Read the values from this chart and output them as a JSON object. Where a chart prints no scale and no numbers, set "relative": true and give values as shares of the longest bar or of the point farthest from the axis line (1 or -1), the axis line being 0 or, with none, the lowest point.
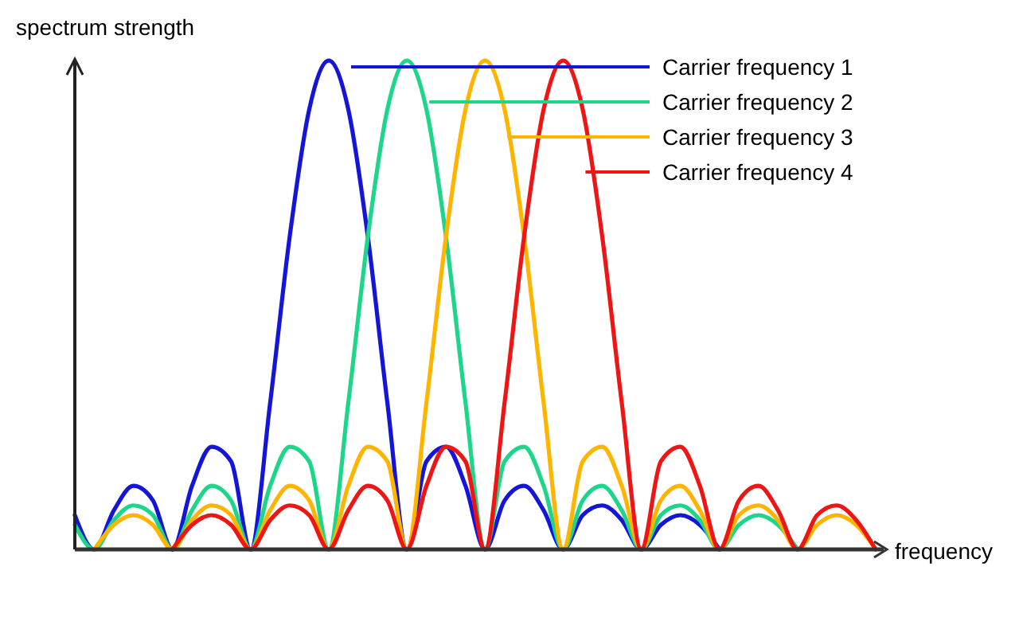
{
  "chart_data": {
    "type": "line",
    "relative": true,
    "xlabel": "frequency",
    "ylabel": "spectrum strength",
    "legend": "top right",
    "categories": [
      null,
      null,
      null,
      null,
      null,
      null,
      null,
      null,
      null,
      null,
      null,
      null,
      null,
      null,
      null,
      null,
      null,
      null,
      null,
      null,
      null,
      null,
      null,
      null,
      null,
      null,
      null,
      null,
      null,
      null,
      null,
      null,
      null,
      null,
      null,
      null,
      null,
      null,
      null,
      null,
      null,
      null
    ],
    "series": [
      {
        "name": "Carrier frequency 1",
        "color": "#1515d8",
        "values": [
          0.07,
          0,
          0.08,
          0.13,
          0.1,
          0,
          0.13,
          0.21,
          0.18,
          0,
          0.3,
          0.64,
          0.9,
          1,
          0.9,
          0.64,
          0.3,
          0,
          0.18,
          0.21,
          0.13,
          0,
          0.1,
          0.13,
          0.08,
          0,
          0.07,
          0.09,
          0.06,
          0,
          0.05,
          0.07,
          0.05,
          0,
          null,
          null,
          null,
          null,
          null,
          null,
          null,
          null
        ]
      },
      {
        "name": "Carrier frequency 2",
        "color": "#1ed68a",
        "values": [
          0.05,
          0,
          0.06,
          0.09,
          0.07,
          0,
          0.08,
          0.13,
          0.1,
          0,
          0.13,
          0.21,
          0.18,
          0,
          0.3,
          0.64,
          0.9,
          1,
          0.9,
          0.64,
          0.3,
          0,
          0.18,
          0.21,
          0.13,
          0,
          0.1,
          0.13,
          0.08,
          0,
          0.07,
          0.09,
          0.06,
          0,
          0.05,
          0.07,
          0.05,
          0,
          null,
          null,
          null,
          null
        ]
      },
      {
        "name": "Carrier frequency 3",
        "color": "#ffb400",
        "values": [
          null,
          0,
          0.05,
          0.07,
          0.05,
          0,
          0.06,
          0.09,
          0.07,
          0,
          0.08,
          0.13,
          0.1,
          0,
          0.13,
          0.21,
          0.18,
          0,
          0.3,
          0.64,
          0.9,
          1,
          0.9,
          0.64,
          0.3,
          0,
          0.18,
          0.21,
          0.13,
          0,
          0.1,
          0.13,
          0.08,
          0,
          0.07,
          0.09,
          0.06,
          0,
          0.05,
          0.07,
          0.05,
          0
        ]
      },
      {
        "name": "Carrier frequency 4",
        "color": "#ee1515",
        "values": [
          null,
          null,
          null,
          null,
          null,
          0,
          0.05,
          0.07,
          0.05,
          0,
          0.06,
          0.09,
          0.07,
          0,
          0.08,
          0.13,
          0.1,
          0,
          0.13,
          0.21,
          0.18,
          0,
          0.3,
          0.64,
          0.9,
          1,
          0.9,
          0.64,
          0.3,
          0,
          0.18,
          0.21,
          0.13,
          0,
          0.1,
          0.13,
          0.08,
          0,
          0.07,
          0.09,
          0.06,
          0
        ]
      }
    ]
  }
}
